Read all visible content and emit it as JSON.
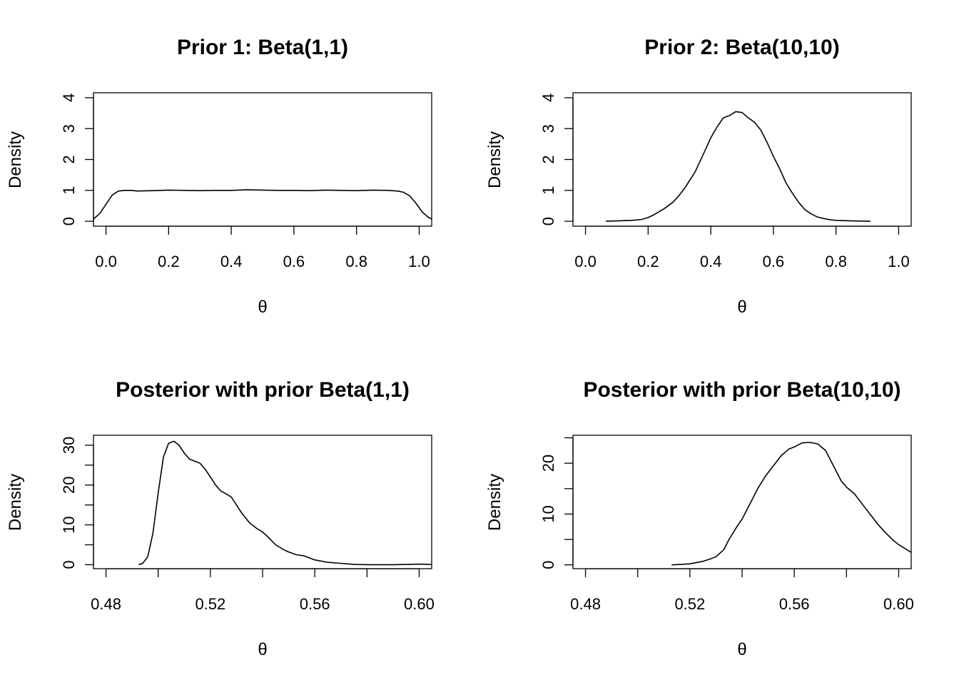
{
  "chart_data": [
    {
      "type": "line",
      "title": "Prior 1: Beta(1,1)",
      "xlabel": "θ",
      "ylabel": "Density",
      "xlim": [
        -0.04,
        1.04
      ],
      "ylim": [
        -0.16,
        4.16
      ],
      "xticks": [
        0.0,
        0.2,
        0.4,
        0.6,
        0.8,
        1.0
      ],
      "xtick_labels": [
        "0.0",
        "0.2",
        "0.4",
        "0.6",
        "0.8",
        "1.0"
      ],
      "xminor": [],
      "yticks": [
        0,
        1,
        2,
        3,
        4
      ],
      "ytick_labels": [
        "0",
        "1",
        "2",
        "3",
        "4"
      ],
      "series": [
        {
          "x": [
            -0.04,
            -0.02,
            0.0,
            0.02,
            0.04,
            0.06,
            0.08,
            0.1,
            0.15,
            0.2,
            0.25,
            0.3,
            0.35,
            0.4,
            0.45,
            0.5,
            0.55,
            0.6,
            0.65,
            0.7,
            0.75,
            0.8,
            0.85,
            0.9,
            0.93,
            0.95,
            0.97,
            0.99,
            1.01,
            1.03,
            1.04
          ],
          "y": [
            0.07,
            0.25,
            0.55,
            0.85,
            0.98,
            1.0,
            1.0,
            0.98,
            0.99,
            1.01,
            1.0,
            0.99,
            1.0,
            1.0,
            1.02,
            1.01,
            1.0,
            1.0,
            0.99,
            1.01,
            1.0,
            0.99,
            1.01,
            1.0,
            0.98,
            0.94,
            0.82,
            0.58,
            0.3,
            0.12,
            0.07
          ]
        }
      ]
    },
    {
      "type": "line",
      "title": "Prior 2: Beta(10,10)",
      "xlabel": "θ",
      "ylabel": "Density",
      "xlim": [
        -0.04,
        1.04
      ],
      "ylim": [
        -0.16,
        4.16
      ],
      "xticks": [
        0.0,
        0.2,
        0.4,
        0.6,
        0.8,
        1.0
      ],
      "xtick_labels": [
        "0.0",
        "0.2",
        "0.4",
        "0.6",
        "0.8",
        "1.0"
      ],
      "xminor": [],
      "yticks": [
        0,
        1,
        2,
        3,
        4
      ],
      "ytick_labels": [
        "0",
        "1",
        "2",
        "3",
        "4"
      ],
      "series": [
        {
          "x": [
            0.065,
            0.1,
            0.15,
            0.18,
            0.2,
            0.22,
            0.25,
            0.28,
            0.3,
            0.32,
            0.35,
            0.38,
            0.4,
            0.42,
            0.44,
            0.46,
            0.48,
            0.5,
            0.52,
            0.54,
            0.56,
            0.58,
            0.6,
            0.62,
            0.64,
            0.66,
            0.68,
            0.7,
            0.72,
            0.74,
            0.76,
            0.78,
            0.8,
            0.85,
            0.91
          ],
          "y": [
            0.0,
            0.01,
            0.03,
            0.06,
            0.12,
            0.22,
            0.4,
            0.62,
            0.85,
            1.12,
            1.6,
            2.25,
            2.7,
            3.05,
            3.35,
            3.42,
            3.55,
            3.52,
            3.35,
            3.2,
            2.95,
            2.55,
            2.1,
            1.7,
            1.25,
            0.92,
            0.62,
            0.38,
            0.24,
            0.14,
            0.09,
            0.05,
            0.03,
            0.01,
            0.0
          ]
        }
      ]
    },
    {
      "type": "line",
      "title": "Posterior with prior Beta(1,1)",
      "xlabel": "θ",
      "ylabel": "Density",
      "xlim": [
        0.4752,
        0.6048
      ],
      "ylim": [
        -1.0,
        32.5
      ],
      "xticks": [
        0.48,
        0.52,
        0.56,
        0.6
      ],
      "xtick_labels": [
        "0.48",
        "0.52",
        "0.56",
        "0.60"
      ],
      "xminor": [
        0.5,
        0.54,
        0.58
      ],
      "yticks": [
        0,
        10,
        20,
        30
      ],
      "ytick_labels": [
        "0",
        "10",
        "20",
        "30"
      ],
      "yminor": [
        5,
        15,
        25
      ],
      "series": [
        {
          "x": [
            0.4925,
            0.494,
            0.496,
            0.498,
            0.5,
            0.502,
            0.504,
            0.506,
            0.508,
            0.51,
            0.512,
            0.514,
            0.516,
            0.518,
            0.52,
            0.522,
            0.524,
            0.526,
            0.528,
            0.53,
            0.532,
            0.535,
            0.538,
            0.54,
            0.542,
            0.545,
            0.548,
            0.55,
            0.553,
            0.556,
            0.56,
            0.565,
            0.57,
            0.575,
            0.58,
            0.585,
            0.59,
            0.595,
            0.6,
            0.605
          ],
          "y": [
            0.0,
            0.3,
            2.0,
            8.0,
            18.0,
            27.0,
            30.5,
            31.0,
            30.0,
            28.0,
            26.5,
            26.0,
            25.5,
            24.0,
            22.0,
            20.0,
            18.5,
            17.8,
            17.0,
            15.0,
            13.0,
            10.5,
            9.0,
            8.2,
            7.0,
            5.0,
            3.8,
            3.2,
            2.5,
            2.2,
            1.2,
            0.6,
            0.35,
            0.1,
            0.0,
            0.0,
            0.0,
            0.05,
            0.15,
            0.05
          ]
        }
      ]
    },
    {
      "type": "line",
      "title": "Posterior with prior Beta(10,10)",
      "xlabel": "θ",
      "ylabel": "Density",
      "xlim": [
        0.4752,
        0.6048
      ],
      "ylim": [
        -0.75,
        25.5
      ],
      "xticks": [
        0.48,
        0.52,
        0.56,
        0.6
      ],
      "xtick_labels": [
        "0.48",
        "0.52",
        "0.56",
        "0.60"
      ],
      "xminor": [
        0.5,
        0.54,
        0.58
      ],
      "yticks": [
        0,
        10,
        20
      ],
      "ytick_labels": [
        "0",
        "10",
        "20"
      ],
      "yminor": [
        5,
        15,
        25
      ],
      "series": [
        {
          "x": [
            0.513,
            0.52,
            0.525,
            0.528,
            0.53,
            0.533,
            0.535,
            0.538,
            0.54,
            0.543,
            0.546,
            0.549,
            0.552,
            0.555,
            0.558,
            0.56,
            0.563,
            0.566,
            0.569,
            0.572,
            0.575,
            0.578,
            0.58,
            0.583,
            0.586,
            0.589,
            0.592,
            0.595,
            0.598,
            0.6,
            0.605
          ],
          "y": [
            0.0,
            0.2,
            0.7,
            1.2,
            1.6,
            3.0,
            5.0,
            7.5,
            9.0,
            12.0,
            15.0,
            17.5,
            19.5,
            21.5,
            22.8,
            23.2,
            24.0,
            24.1,
            23.8,
            22.5,
            19.5,
            16.5,
            15.3,
            14.0,
            12.0,
            10.0,
            8.0,
            6.3,
            4.8,
            4.0,
            2.4
          ]
        }
      ]
    }
  ]
}
